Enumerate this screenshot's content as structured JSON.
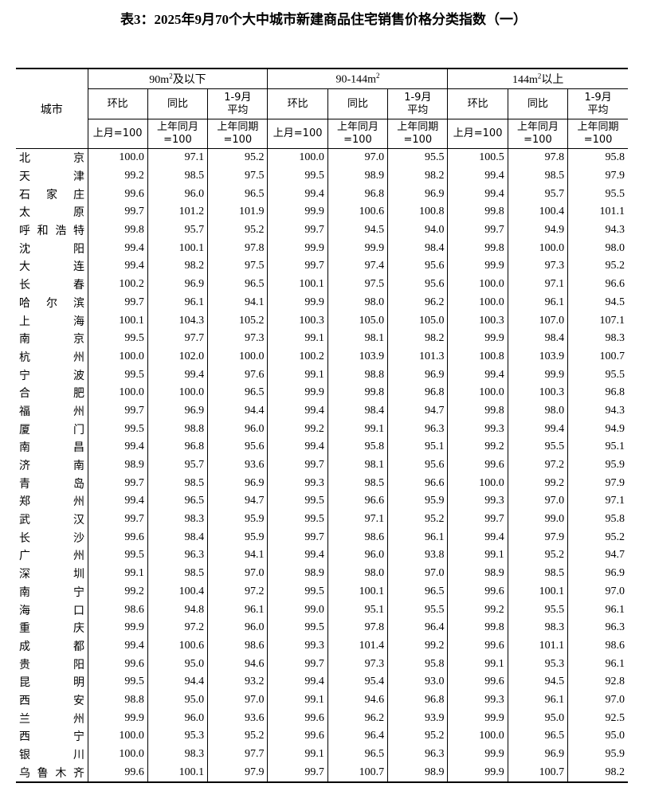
{
  "title": "表3：2025年9月70个大中城市新建商品住宅销售价格分类指数（一）",
  "header": {
    "city": "城市",
    "groups": [
      {
        "pre": "90m",
        "sup": "2",
        "post": "及以下"
      },
      {
        "pre": "90-144m",
        "sup": "2",
        "post": ""
      },
      {
        "pre": "144m",
        "sup": "2",
        "post": "以上"
      }
    ],
    "sub": [
      {
        "l1": "环比",
        "l2": ""
      },
      {
        "l1": "同比",
        "l2": ""
      },
      {
        "l1": "1-9月",
        "l2": "平均"
      }
    ],
    "base": [
      {
        "l1": "上月=100",
        "l2": ""
      },
      {
        "l1": "上年同月",
        "l2": "=100"
      },
      {
        "l1": "上年同期",
        "l2": "=100"
      }
    ]
  },
  "rows": [
    {
      "city": "北京",
      "v": [
        "100.0",
        "97.1",
        "95.2",
        "100.0",
        "97.0",
        "95.5",
        "100.5",
        "97.8",
        "95.8"
      ]
    },
    {
      "city": "天津",
      "v": [
        "99.2",
        "98.5",
        "97.5",
        "99.5",
        "98.9",
        "98.2",
        "99.4",
        "98.5",
        "97.9"
      ]
    },
    {
      "city": "石家庄",
      "v": [
        "99.6",
        "96.0",
        "96.5",
        "99.4",
        "96.8",
        "96.9",
        "99.4",
        "95.7",
        "95.5"
      ]
    },
    {
      "city": "太原",
      "v": [
        "99.7",
        "101.2",
        "101.9",
        "99.9",
        "100.6",
        "100.8",
        "99.8",
        "100.4",
        "101.1"
      ]
    },
    {
      "city": "呼和浩特",
      "v": [
        "99.8",
        "95.7",
        "95.2",
        "99.7",
        "94.5",
        "94.0",
        "99.7",
        "94.9",
        "94.3"
      ]
    },
    {
      "city": "沈阳",
      "v": [
        "99.4",
        "100.1",
        "97.8",
        "99.9",
        "99.9",
        "98.4",
        "99.8",
        "100.0",
        "98.0"
      ]
    },
    {
      "city": "大连",
      "v": [
        "99.4",
        "98.2",
        "97.5",
        "99.7",
        "97.4",
        "95.6",
        "99.9",
        "97.3",
        "95.2"
      ]
    },
    {
      "city": "长春",
      "v": [
        "100.2",
        "96.9",
        "96.5",
        "100.1",
        "97.5",
        "95.6",
        "100.0",
        "97.1",
        "96.6"
      ]
    },
    {
      "city": "哈尔滨",
      "v": [
        "99.7",
        "96.1",
        "94.1",
        "99.9",
        "98.0",
        "96.2",
        "100.0",
        "96.1",
        "94.5"
      ]
    },
    {
      "city": "上海",
      "v": [
        "100.1",
        "104.3",
        "105.2",
        "100.3",
        "105.0",
        "105.0",
        "100.3",
        "107.0",
        "107.1"
      ]
    },
    {
      "city": "南京",
      "v": [
        "99.5",
        "97.7",
        "97.3",
        "99.1",
        "98.1",
        "98.2",
        "99.9",
        "98.4",
        "98.3"
      ]
    },
    {
      "city": "杭州",
      "v": [
        "100.0",
        "102.0",
        "100.0",
        "100.2",
        "103.9",
        "101.3",
        "100.8",
        "103.9",
        "100.7"
      ]
    },
    {
      "city": "宁波",
      "v": [
        "99.5",
        "99.4",
        "97.6",
        "99.1",
        "98.8",
        "96.9",
        "99.4",
        "99.9",
        "95.5"
      ]
    },
    {
      "city": "合肥",
      "v": [
        "100.0",
        "100.0",
        "96.5",
        "99.9",
        "99.8",
        "96.8",
        "100.0",
        "100.3",
        "96.8"
      ]
    },
    {
      "city": "福州",
      "v": [
        "99.7",
        "96.9",
        "94.4",
        "99.4",
        "98.4",
        "94.7",
        "99.8",
        "98.0",
        "94.3"
      ]
    },
    {
      "city": "厦门",
      "v": [
        "99.5",
        "98.8",
        "96.0",
        "99.2",
        "99.1",
        "96.3",
        "99.3",
        "99.4",
        "94.9"
      ]
    },
    {
      "city": "南昌",
      "v": [
        "99.4",
        "96.8",
        "95.6",
        "99.4",
        "95.8",
        "95.1",
        "99.2",
        "95.5",
        "95.1"
      ]
    },
    {
      "city": "济南",
      "v": [
        "98.9",
        "95.7",
        "93.6",
        "99.7",
        "98.1",
        "95.6",
        "99.6",
        "97.2",
        "95.9"
      ]
    },
    {
      "city": "青岛",
      "v": [
        "99.7",
        "98.5",
        "96.9",
        "99.3",
        "98.5",
        "96.6",
        "100.0",
        "99.2",
        "97.9"
      ]
    },
    {
      "city": "郑州",
      "v": [
        "99.4",
        "96.5",
        "94.7",
        "99.5",
        "96.6",
        "95.9",
        "99.3",
        "97.0",
        "97.1"
      ]
    },
    {
      "city": "武汉",
      "v": [
        "99.7",
        "98.3",
        "95.9",
        "99.5",
        "97.1",
        "95.2",
        "99.7",
        "99.0",
        "95.8"
      ]
    },
    {
      "city": "长沙",
      "v": [
        "99.6",
        "98.4",
        "95.9",
        "99.7",
        "98.6",
        "96.1",
        "99.4",
        "97.9",
        "95.2"
      ]
    },
    {
      "city": "广州",
      "v": [
        "99.5",
        "96.3",
        "94.1",
        "99.4",
        "96.0",
        "93.8",
        "99.1",
        "95.2",
        "94.7"
      ]
    },
    {
      "city": "深圳",
      "v": [
        "99.1",
        "98.5",
        "97.0",
        "98.9",
        "98.0",
        "97.0",
        "98.9",
        "98.5",
        "96.9"
      ]
    },
    {
      "city": "南宁",
      "v": [
        "99.2",
        "100.4",
        "97.2",
        "99.5",
        "100.1",
        "96.5",
        "99.6",
        "100.1",
        "97.0"
      ]
    },
    {
      "city": "海口",
      "v": [
        "98.6",
        "94.8",
        "96.1",
        "99.0",
        "95.1",
        "95.5",
        "99.2",
        "95.5",
        "96.1"
      ]
    },
    {
      "city": "重庆",
      "v": [
        "99.9",
        "97.2",
        "96.0",
        "99.5",
        "97.8",
        "96.4",
        "99.8",
        "98.3",
        "96.3"
      ]
    },
    {
      "city": "成都",
      "v": [
        "99.4",
        "100.6",
        "98.6",
        "99.3",
        "101.4",
        "99.2",
        "99.6",
        "101.1",
        "98.6"
      ]
    },
    {
      "city": "贵阳",
      "v": [
        "99.6",
        "95.0",
        "94.6",
        "99.7",
        "97.3",
        "95.8",
        "99.1",
        "95.3",
        "96.1"
      ]
    },
    {
      "city": "昆明",
      "v": [
        "99.5",
        "94.4",
        "93.2",
        "99.4",
        "95.4",
        "93.0",
        "99.6",
        "94.5",
        "92.8"
      ]
    },
    {
      "city": "西安",
      "v": [
        "98.8",
        "95.0",
        "97.0",
        "99.1",
        "94.6",
        "96.8",
        "99.3",
        "96.1",
        "97.0"
      ]
    },
    {
      "city": "兰州",
      "v": [
        "99.9",
        "96.0",
        "93.6",
        "99.6",
        "96.2",
        "93.9",
        "99.9",
        "95.0",
        "92.5"
      ]
    },
    {
      "city": "西宁",
      "v": [
        "100.0",
        "95.3",
        "95.2",
        "99.6",
        "96.4",
        "95.2",
        "100.0",
        "96.5",
        "95.0"
      ]
    },
    {
      "city": "银川",
      "v": [
        "100.0",
        "98.3",
        "97.7",
        "99.1",
        "96.5",
        "96.3",
        "99.9",
        "96.9",
        "95.9"
      ]
    },
    {
      "city": "乌鲁木齐",
      "v": [
        "99.6",
        "100.1",
        "97.9",
        "99.7",
        "100.7",
        "98.9",
        "99.9",
        "100.7",
        "98.2"
      ]
    }
  ]
}
